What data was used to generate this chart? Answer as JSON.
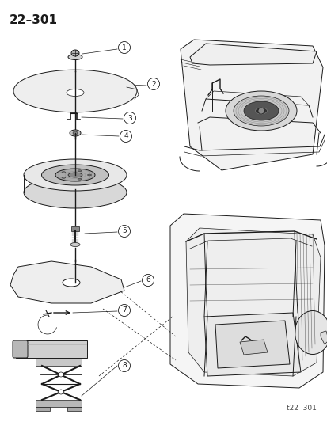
{
  "title": "22–301",
  "footer": "t22  301",
  "bg_color": "#ffffff",
  "lc": "#1a1a1a",
  "title_fontsize": 11,
  "footer_fontsize": 6.5
}
